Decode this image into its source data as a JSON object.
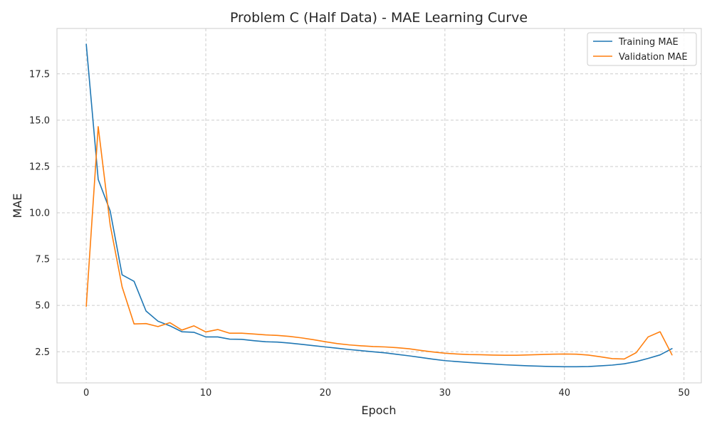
{
  "chart_data": {
    "type": "line",
    "title": "Problem C (Half Data) - MAE Learning Curve",
    "xlabel": "Epoch",
    "ylabel": "MAE",
    "xlim": [
      -2.45,
      51.45
    ],
    "ylim": [
      0.82,
      19.95
    ],
    "xticks": [
      0,
      10,
      20,
      30,
      40,
      50
    ],
    "xtick_labels": [
      "0",
      "10",
      "20",
      "30",
      "40",
      "50"
    ],
    "yticks": [
      2.5,
      5.0,
      7.5,
      10.0,
      12.5,
      15.0,
      17.5
    ],
    "ytick_labels": [
      "2.5",
      "5.0",
      "7.5",
      "10.0",
      "12.5",
      "15.0",
      "17.5"
    ],
    "grid": true,
    "legend": "top-right",
    "x": [
      0,
      1,
      2,
      3,
      4,
      5,
      6,
      7,
      8,
      9,
      10,
      11,
      12,
      13,
      14,
      15,
      16,
      17,
      18,
      19,
      20,
      21,
      22,
      23,
      24,
      25,
      26,
      27,
      28,
      29,
      30,
      31,
      32,
      33,
      34,
      35,
      36,
      37,
      38,
      39,
      40,
      41,
      42,
      43,
      44,
      45,
      46,
      47,
      48,
      49
    ],
    "series": [
      {
        "name": "Training MAE",
        "color": "#1f77b4",
        "values": [
          19.1,
          11.8,
          10.1,
          6.65,
          6.3,
          4.7,
          4.15,
          3.9,
          3.58,
          3.55,
          3.3,
          3.3,
          3.18,
          3.17,
          3.1,
          3.04,
          3.02,
          2.97,
          2.9,
          2.83,
          2.76,
          2.69,
          2.62,
          2.56,
          2.5,
          2.44,
          2.36,
          2.28,
          2.19,
          2.1,
          2.02,
          1.97,
          1.92,
          1.88,
          1.84,
          1.8,
          1.77,
          1.74,
          1.72,
          1.7,
          1.69,
          1.69,
          1.7,
          1.74,
          1.78,
          1.85,
          1.97,
          2.14,
          2.33,
          2.67
        ]
      },
      {
        "name": "Validation MAE",
        "color": "#ff7f0e",
        "values": [
          4.95,
          14.65,
          9.35,
          6.0,
          4.0,
          4.02,
          3.86,
          4.07,
          3.67,
          3.9,
          3.57,
          3.7,
          3.5,
          3.5,
          3.46,
          3.41,
          3.38,
          3.33,
          3.25,
          3.15,
          3.04,
          2.94,
          2.87,
          2.82,
          2.78,
          2.76,
          2.72,
          2.66,
          2.57,
          2.49,
          2.42,
          2.38,
          2.35,
          2.34,
          2.32,
          2.31,
          2.31,
          2.33,
          2.35,
          2.37,
          2.38,
          2.37,
          2.32,
          2.23,
          2.13,
          2.11,
          2.45,
          3.3,
          3.58,
          2.33
        ]
      }
    ]
  }
}
